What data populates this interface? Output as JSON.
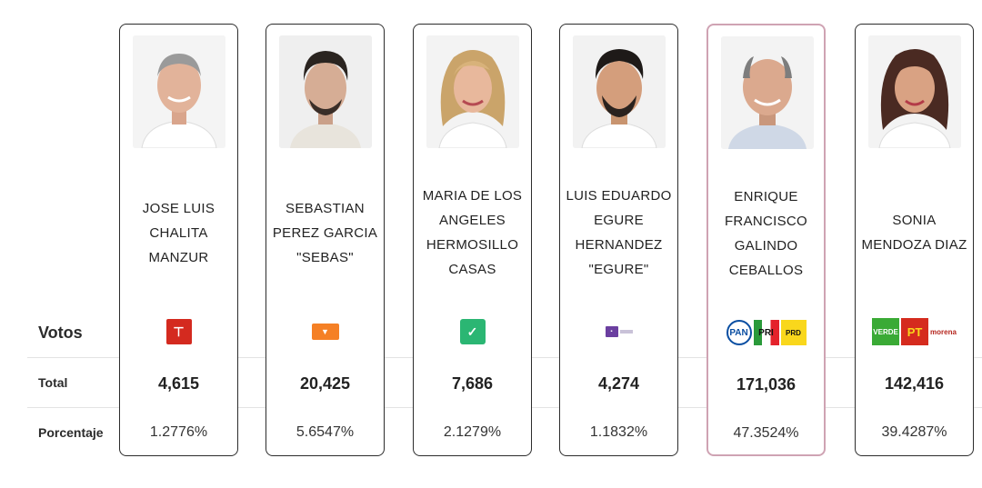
{
  "labels": {
    "votos": "Votos",
    "total": "Total",
    "porcentaje": "Porcentaje"
  },
  "candidates": [
    {
      "name": "JOSE LUIS CHALITA MANZUR",
      "party": "PC",
      "total": "4,615",
      "pct": "1.2776%"
    },
    {
      "name": "SEBASTIAN PEREZ GARCIA \"SEBAS\"",
      "party": "MC",
      "total": "20,425",
      "pct": "5.6547%"
    },
    {
      "name": "MARIA DE LOS ANGELES HERMOSILLO CASAS",
      "party": "ABC",
      "total": "7,686",
      "pct": "2.1279%"
    },
    {
      "name": "LUIS EDUARDO EGURE HERNANDEZ \"EGURE\"",
      "party": "PCL",
      "total": "4,274",
      "pct": "1.1832%"
    },
    {
      "name": "ENRIQUE FRANCISCO GALINDO CEBALLOS",
      "party": "PAN PRI PRD",
      "total": "171,036",
      "pct": "47.3524%"
    },
    {
      "name": "SONIA MENDOZA DIAZ",
      "party": "VERDE PT morena",
      "total": "142,416",
      "pct": "39.4287%"
    }
  ],
  "colors": {
    "pan": "#0a4ea2",
    "pri": "#e4222b",
    "prd": "#f9d71c",
    "verde": "#3aaa35",
    "pt": "#d52b1e",
    "morena": "#b5261e",
    "mc": "#f58025",
    "pc": "#d42a1f"
  }
}
